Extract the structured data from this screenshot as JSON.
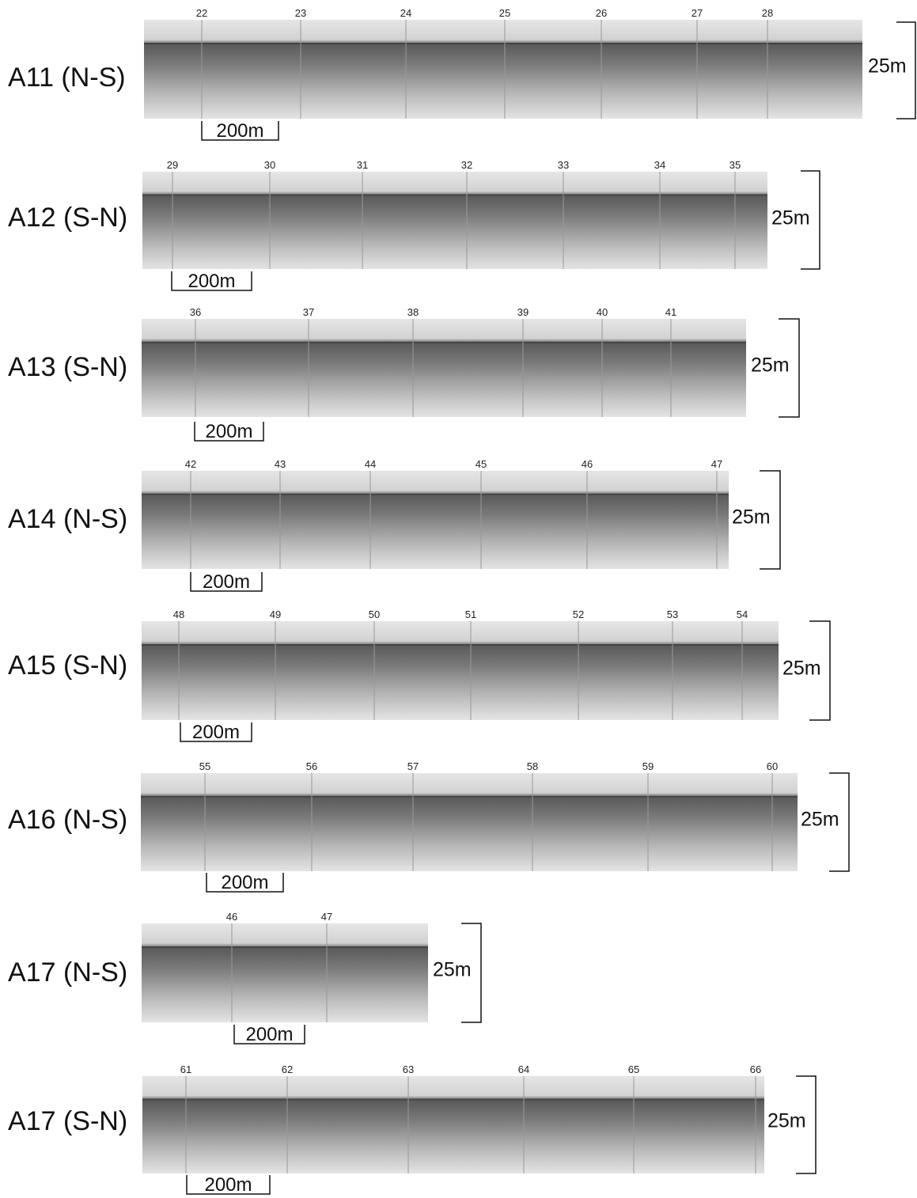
{
  "profiles": [
    {
      "label": "A11 (N-S)",
      "fixes": [
        "22",
        "23",
        "24",
        "25",
        "26",
        "27",
        "28"
      ],
      "scale": "200m",
      "depth": "25m"
    },
    {
      "label": "A12 (S-N)",
      "fixes": [
        "29",
        "30",
        "31",
        "32",
        "33",
        "34",
        "35"
      ],
      "scale": "200m",
      "depth": "25m"
    },
    {
      "label": "A13 (S-N)",
      "fixes": [
        "36",
        "37",
        "38",
        "39",
        "40",
        "41"
      ],
      "scale": "200m",
      "depth": "25m"
    },
    {
      "label": "A14 (N-S)",
      "fixes": [
        "42",
        "43",
        "44",
        "45",
        "46",
        "47"
      ],
      "scale": "200m",
      "depth": "25m"
    },
    {
      "label": "A15 (S-N)",
      "fixes": [
        "48",
        "49",
        "50",
        "51",
        "52",
        "53",
        "54"
      ],
      "scale": "200m",
      "depth": "25m"
    },
    {
      "label": "A16 (N-S)",
      "fixes": [
        "55",
        "56",
        "57",
        "58",
        "59",
        "60"
      ],
      "scale": "200m",
      "depth": "25m"
    },
    {
      "label": "A17 (N-S)",
      "fixes": [
        "46",
        "47"
      ],
      "scale": "200m",
      "depth": "25m"
    },
    {
      "label": "A17 (S-N)",
      "fixes": [
        "61",
        "62",
        "63",
        "64",
        "65",
        "66"
      ],
      "scale": "200m",
      "depth": "25m"
    }
  ]
}
